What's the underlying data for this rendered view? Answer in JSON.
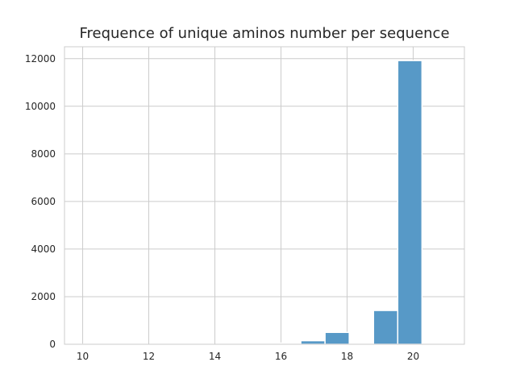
{
  "chart_data": {
    "type": "bar",
    "title": "Frequence of unique aminos number per sequence",
    "xlabel": "",
    "ylabel": "",
    "xlim": [
      9.45,
      21.55
    ],
    "ylim": [
      0,
      12500
    ],
    "xticks": [
      10,
      12,
      14,
      16,
      18,
      20
    ],
    "yticks": [
      0,
      2000,
      4000,
      6000,
      8000,
      10000,
      12000
    ],
    "grid": true,
    "bin_width": 0.733,
    "bins": [
      {
        "x0": 10.0,
        "value": 2
      },
      {
        "x0": 10.733,
        "value": 0
      },
      {
        "x0": 11.467,
        "value": 0
      },
      {
        "x0": 12.2,
        "value": 0
      },
      {
        "x0": 12.933,
        "value": 0
      },
      {
        "x0": 13.667,
        "value": 0
      },
      {
        "x0": 14.4,
        "value": 0
      },
      {
        "x0": 15.133,
        "value": 0
      },
      {
        "x0": 15.867,
        "value": 50
      },
      {
        "x0": 16.6,
        "value": 150
      },
      {
        "x0": 17.333,
        "value": 500
      },
      {
        "x0": 18.067,
        "value": 0
      },
      {
        "x0": 18.8,
        "value": 1420
      },
      {
        "x0": 19.533,
        "value": 11920
      },
      {
        "x0": 20.267,
        "value": 0
      }
    ],
    "bar_color": "#5799c7",
    "bar_edge_color": "#ffffff",
    "grid_color": "#cccccc",
    "spine_color": "#cccccc"
  }
}
